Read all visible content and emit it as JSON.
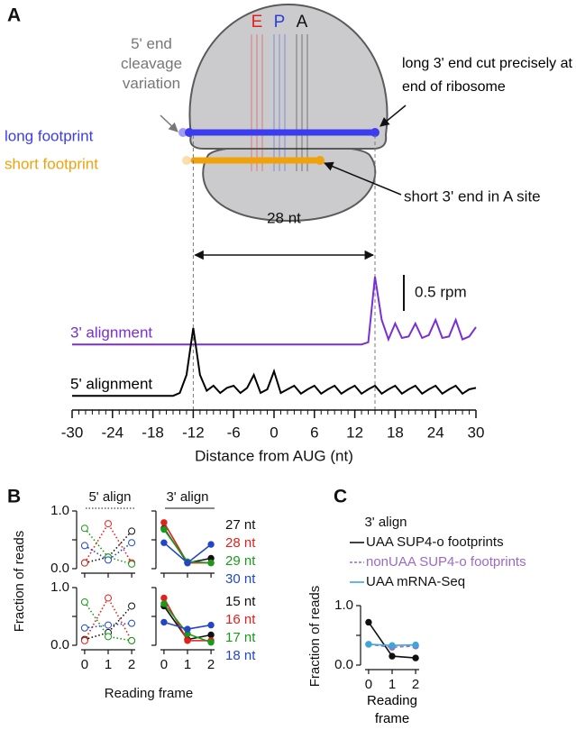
{
  "panel_labels": [
    "A",
    "B",
    "C"
  ],
  "panel_a": {
    "sites": [
      "E",
      "P",
      "A"
    ],
    "site_colors": [
      "#e3201b",
      "#2a3fe0",
      "#111111"
    ],
    "cleavage_note": "5' end cleavage variation",
    "long_note": "long 3' end cut precisely at end of ribosome",
    "long_footprint": "long footprint",
    "long_color": "#3b3bef",
    "short_footprint": "short footprint",
    "short_color": "#f0a20c",
    "short_note": "short 3' end in A site",
    "distance_label": "28 nt"
  },
  "panel_b": {
    "ylabel": "Fraction of reads",
    "xlabel": "Reading frame"
  },
  "chart_data": [
    {
      "type": "trace",
      "x": [
        -30,
        -29,
        -28,
        -27,
        -26,
        -25,
        -24,
        -23,
        -22,
        -21,
        -20,
        -19,
        -18,
        -17,
        -16,
        -15,
        -14,
        -13,
        -12,
        -11,
        -10,
        -9,
        -8,
        -7,
        -6,
        -5,
        -4,
        -3,
        -2,
        -1,
        0,
        1,
        2,
        3,
        4,
        5,
        6,
        7,
        8,
        9,
        10,
        11,
        12,
        13,
        14,
        15,
        16,
        17,
        18,
        19,
        20,
        21,
        22,
        23,
        24,
        25,
        26,
        27,
        28,
        29,
        30
      ],
      "xlim": [
        -30,
        30
      ],
      "xticks": [
        -30,
        -24,
        -18,
        -12,
        -6,
        0,
        6,
        12,
        18,
        24,
        30
      ],
      "xlabel": "Distance from AUG (nt)",
      "scale_bar": {
        "value": 0.5,
        "label": "0.5 rpm"
      },
      "series": [
        {
          "name": "3' alignment",
          "color": "#7a2fd6",
          "values": [
            0.01,
            0.01,
            0.01,
            0.01,
            0.01,
            0.01,
            0.01,
            0.01,
            0.01,
            0.01,
            0.01,
            0.01,
            0.01,
            0.01,
            0.01,
            0.01,
            0.01,
            0.01,
            0.01,
            0.01,
            0.01,
            0.01,
            0.01,
            0.01,
            0.01,
            0.01,
            0.01,
            0.01,
            0.01,
            0.01,
            0.01,
            0.01,
            0.01,
            0.01,
            0.01,
            0.01,
            0.01,
            0.01,
            0.01,
            0.01,
            0.01,
            0.01,
            0.01,
            0.01,
            0.04,
            0.95,
            0.35,
            0.08,
            0.3,
            0.1,
            0.12,
            0.3,
            0.1,
            0.14,
            0.35,
            0.1,
            0.12,
            0.35,
            0.08,
            0.12,
            0.25
          ]
        },
        {
          "name": "5' alignment",
          "color": "#000000",
          "values": [
            0.01,
            0.01,
            0.01,
            0.01,
            0.01,
            0.01,
            0.01,
            0.01,
            0.01,
            0.01,
            0.01,
            0.01,
            0.01,
            0.01,
            0.01,
            0.01,
            0.05,
            0.3,
            0.95,
            0.3,
            0.08,
            0.15,
            0.05,
            0.12,
            0.15,
            0.05,
            0.12,
            0.3,
            0.05,
            0.1,
            0.35,
            0.05,
            0.1,
            0.15,
            0.04,
            0.1,
            0.15,
            0.04,
            0.1,
            0.15,
            0.04,
            0.1,
            0.15,
            0.04,
            0.1,
            0.15,
            0.04,
            0.1,
            0.15,
            0.04,
            0.1,
            0.15,
            0.04,
            0.1,
            0.15,
            0.04,
            0.1,
            0.15,
            0.04,
            0.1,
            0.12
          ]
        }
      ]
    },
    {
      "type": "line",
      "title": "5' align",
      "x": [
        0,
        1,
        2
      ],
      "xlim": [
        -0.15,
        2.15
      ],
      "ylim": [
        0,
        1
      ],
      "xticks": [
        0,
        1,
        2
      ],
      "yticks": [
        {
          "value": 0,
          "label": "0.0"
        },
        0.5,
        {
          "value": 1,
          "label": "1.0"
        }
      ],
      "line_style": "dotted",
      "marker": "open",
      "series": [
        {
          "color": "#111111",
          "values": [
            0.1,
            0.2,
            0.65
          ]
        },
        {
          "color": "#e3201b",
          "values": [
            0.1,
            0.78,
            0.1
          ]
        },
        {
          "color": "#1a9a1a",
          "values": [
            0.7,
            0.2,
            0.08
          ]
        },
        {
          "color": "#2346c8",
          "values": [
            0.4,
            0.15,
            0.45
          ]
        }
      ]
    },
    {
      "type": "line",
      "title": "3' align",
      "x": [
        0,
        1,
        2
      ],
      "xlim": [
        -0.15,
        2.15
      ],
      "ylim": [
        0,
        1
      ],
      "xticks": [
        0,
        1,
        2
      ],
      "yticks": [
        0,
        0.5,
        1
      ],
      "line_style": "solid",
      "marker": "filled",
      "series": [
        {
          "name": "27 nt",
          "color": "#111111",
          "values": [
            0.7,
            0.1,
            0.18
          ]
        },
        {
          "name": "28 nt",
          "color": "#e3201b",
          "values": [
            0.8,
            0.1,
            0.1
          ]
        },
        {
          "name": "29 nt",
          "color": "#1a9a1a",
          "values": [
            0.68,
            0.12,
            0.1
          ]
        },
        {
          "name": "30 nt",
          "color": "#2346c8",
          "values": [
            0.45,
            0.1,
            0.42
          ]
        }
      ]
    },
    {
      "type": "line",
      "x": [
        0,
        1,
        2
      ],
      "xlim": [
        -0.15,
        2.15
      ],
      "ylim": [
        0,
        1
      ],
      "xticks": [
        0,
        1,
        2
      ],
      "yticks": [
        {
          "value": 0,
          "label": "0.0"
        },
        0.5,
        {
          "value": 1,
          "label": "1.0"
        }
      ],
      "line_style": "dotted",
      "marker": "open",
      "series": [
        {
          "color": "#111111",
          "values": [
            0.1,
            0.22,
            0.68
          ]
        },
        {
          "color": "#e3201b",
          "values": [
            0.08,
            0.82,
            0.08
          ]
        },
        {
          "color": "#1a9a1a",
          "values": [
            0.75,
            0.15,
            0.08
          ]
        },
        {
          "color": "#2346c8",
          "values": [
            0.3,
            0.35,
            0.38
          ]
        }
      ]
    },
    {
      "type": "line",
      "x": [
        0,
        1,
        2
      ],
      "xlim": [
        -0.15,
        2.15
      ],
      "ylim": [
        0,
        1
      ],
      "xticks": [
        0,
        1,
        2
      ],
      "yticks": [
        0,
        0.5,
        1
      ],
      "line_style": "solid",
      "marker": "filled",
      "series": [
        {
          "name": "15 nt",
          "color": "#111111",
          "values": [
            0.68,
            0.1,
            0.18
          ]
        },
        {
          "name": "16 nt",
          "color": "#e3201b",
          "values": [
            0.82,
            0.08,
            0.08
          ]
        },
        {
          "name": "17 nt",
          "color": "#1a9a1a",
          "values": [
            0.72,
            0.2,
            0.05
          ]
        },
        {
          "name": "18 nt",
          "color": "#2346c8",
          "values": [
            0.4,
            0.28,
            0.35
          ]
        }
      ]
    },
    {
      "type": "line",
      "title": "3' align",
      "x": [
        0,
        1,
        2
      ],
      "xlim": [
        -0.15,
        2.15
      ],
      "ylim": [
        0,
        1
      ],
      "xticks": [
        0,
        1,
        2
      ],
      "yticks": [
        {
          "value": 0,
          "label": "0.0"
        },
        0.5,
        {
          "value": 1,
          "label": "1.0"
        }
      ],
      "ylabel": "Fraction of reads",
      "xlabel": "Reading frame",
      "marker": "filled",
      "series": [
        {
          "name": "UAA SUP4-o footprints",
          "color": "#111111",
          "line_style": "solid",
          "values": [
            0.72,
            0.15,
            0.12
          ]
        },
        {
          "name": "nonUAA SUP4-o footprints",
          "color": "#9b6bc4",
          "line_style": "dashed",
          "values": [
            0.35,
            0.3,
            0.32
          ]
        },
        {
          "name": "UAA mRNA-Seq",
          "color": "#3fa6d9",
          "line_style": "solid",
          "values": [
            0.35,
            0.33,
            0.34
          ]
        }
      ]
    }
  ]
}
